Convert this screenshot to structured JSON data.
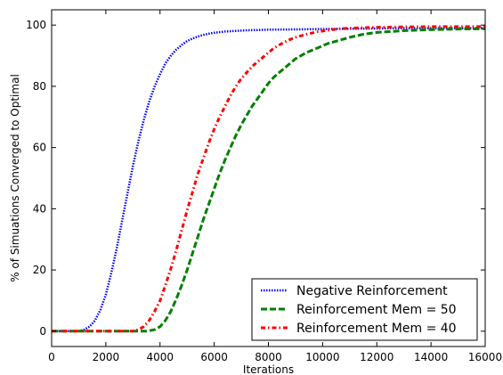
{
  "chart_data": {
    "type": "line",
    "xlabel": "Iterations",
    "ylabel": "% of Simuations Converged to Optimal",
    "xlim": [
      0,
      16000
    ],
    "ylim": [
      -5,
      105
    ],
    "xticks": [
      0,
      2000,
      4000,
      6000,
      8000,
      10000,
      12000,
      14000,
      16000
    ],
    "yticks": [
      0,
      20,
      40,
      60,
      80,
      100
    ],
    "grid": false,
    "legend_position": "bottom-right",
    "series": [
      {
        "name": "Negative Reinforcement",
        "color": "#0000ff",
        "style": "dotted",
        "x": [
          0,
          1000,
          1200,
          1400,
          1600,
          1800,
          2000,
          2200,
          2400,
          2600,
          2800,
          3000,
          3200,
          3400,
          3600,
          3800,
          4000,
          4200,
          4400,
          4600,
          4800,
          5000,
          5200,
          5400,
          5600,
          5800,
          6000,
          6400,
          6800,
          7200,
          7600,
          8000,
          9000,
          10000,
          11000,
          12000,
          13000,
          14000,
          15000,
          16000
        ],
        "y": [
          0,
          0,
          0.5,
          1.5,
          3.5,
          7,
          12,
          19,
          27,
          36,
          45,
          54,
          62,
          69,
          75,
          80,
          84,
          87.5,
          90,
          92,
          93.5,
          94.8,
          95.6,
          96.3,
          96.8,
          97.2,
          97.5,
          97.9,
          98.1,
          98.3,
          98.4,
          98.5,
          98.6,
          98.7,
          98.8,
          98.9,
          99,
          99,
          99,
          99
        ]
      },
      {
        "name": "Reinforcement Mem = 50",
        "color": "#008000",
        "style": "dashed",
        "x": [
          0,
          3500,
          3800,
          4000,
          4200,
          4400,
          4600,
          4800,
          5000,
          5200,
          5400,
          5600,
          5800,
          6000,
          6200,
          6400,
          6600,
          6800,
          7000,
          7200,
          7400,
          7600,
          7800,
          8000,
          8200,
          8400,
          8600,
          8800,
          9000,
          9400,
          9800,
          10200,
          10600,
          11000,
          11500,
          12000,
          13000,
          14000,
          15000,
          16000
        ],
        "y": [
          0,
          0,
          0.5,
          1.5,
          3.5,
          6.5,
          10.5,
          15,
          20,
          25.5,
          31,
          36.5,
          41.5,
          46.5,
          51.5,
          56,
          60,
          64,
          67.5,
          70.5,
          73.5,
          76,
          78.5,
          81,
          83,
          84.5,
          86,
          87.5,
          89,
          91,
          92.5,
          94,
          95,
          96,
          97,
          97.6,
          98.2,
          98.5,
          98.7,
          98.8
        ]
      },
      {
        "name": "Reinforcement Mem = 40",
        "color": "#ff0000",
        "style": "dashdot",
        "x": [
          0,
          3000,
          3200,
          3400,
          3600,
          3800,
          4000,
          4200,
          4400,
          4600,
          4800,
          5000,
          5200,
          5400,
          5600,
          5800,
          6000,
          6200,
          6400,
          6600,
          6800,
          7000,
          7200,
          7400,
          7600,
          7800,
          8000,
          8200,
          8400,
          8600,
          8800,
          9000,
          9400,
          9800,
          10200,
          10600,
          11000,
          12000,
          13000,
          14000,
          15000,
          16000
        ],
        "y": [
          0,
          0,
          0.5,
          1.5,
          3.5,
          6.5,
          10,
          15,
          20.5,
          26.5,
          33,
          39.5,
          45.5,
          51.5,
          56.5,
          61.5,
          66,
          70,
          73.5,
          77,
          80,
          82.5,
          84.5,
          86.5,
          88,
          89.5,
          91,
          92.5,
          93.5,
          94.5,
          95.3,
          96,
          97,
          97.8,
          98.3,
          98.8,
          99,
          99.3,
          99.4,
          99.5,
          99.5,
          99.5
        ]
      }
    ]
  }
}
